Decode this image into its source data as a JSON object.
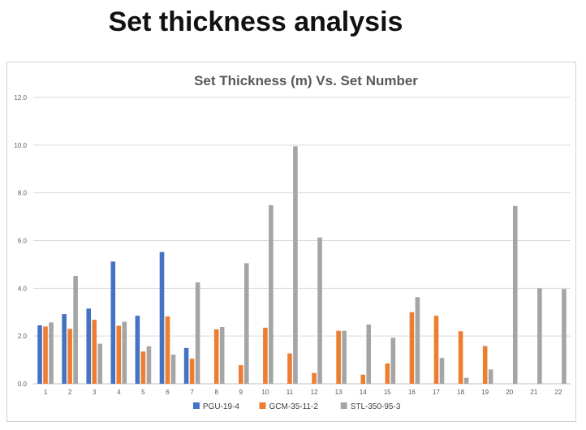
{
  "slide": {
    "title": "Set thickness analysis"
  },
  "chart_data": {
    "type": "bar",
    "title": "Set Thickness (m) Vs. Set Number",
    "xlabel": "",
    "ylabel": "",
    "ylim": [
      0,
      12
    ],
    "ytick_labels": [
      "0.0",
      "2.0",
      "4.0",
      "6.0",
      "8.0",
      "10.0",
      "12.0"
    ],
    "grid": true,
    "legend_position": "bottom",
    "categories": [
      "1",
      "2",
      "3",
      "4",
      "5",
      "6",
      "7",
      "8",
      "9",
      "10",
      "11",
      "12",
      "13",
      "14",
      "15",
      "16",
      "17",
      "18",
      "19",
      "20",
      "21",
      "22"
    ],
    "series": [
      {
        "name": "PGU-19-4",
        "color": "#4472C4",
        "values": [
          2.45,
          2.92,
          3.15,
          5.12,
          2.85,
          5.52,
          1.5,
          null,
          null,
          null,
          null,
          null,
          null,
          null,
          null,
          null,
          null,
          null,
          null,
          null,
          null,
          null
        ]
      },
      {
        "name": "GCM-35-11-2",
        "color": "#ED7D31",
        "values": [
          2.4,
          2.3,
          2.68,
          2.43,
          1.35,
          2.82,
          1.05,
          2.28,
          0.78,
          2.35,
          1.27,
          0.45,
          2.22,
          0.38,
          0.85,
          3.0,
          2.85,
          2.2,
          1.58,
          null,
          null,
          null
        ]
      },
      {
        "name": "STL-350-95-3",
        "color": "#A5A5A5",
        "values": [
          2.57,
          4.52,
          1.68,
          2.6,
          1.57,
          1.22,
          4.25,
          2.38,
          5.05,
          7.48,
          9.95,
          6.13,
          2.22,
          2.48,
          1.93,
          3.63,
          1.08,
          0.25,
          0.6,
          7.45,
          4.0,
          3.97
        ]
      }
    ]
  }
}
